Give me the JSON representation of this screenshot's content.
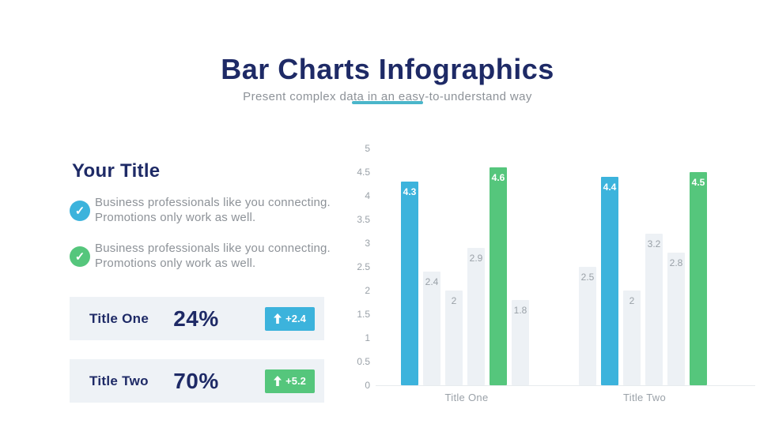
{
  "header": {
    "title": "Bar Charts Infographics",
    "subtitle": "Present complex data in an easy-to-understand way"
  },
  "left_panel": {
    "title": "Your Title",
    "bullets": [
      {
        "icon": "check-circle",
        "icon_color": "blue",
        "check_glyph": "✓",
        "lines": [
          "Business professionals like you connecting.",
          "Promotions only work as well."
        ]
      },
      {
        "icon": "check-circle",
        "icon_color": "green",
        "check_glyph": "✓",
        "lines": [
          "Business professionals like you connecting.",
          "Promotions only work as well."
        ]
      }
    ],
    "stats": [
      {
        "label": "Title One",
        "value": "24%",
        "delta": "+2.4",
        "badge_color": "blue",
        "badge_icon": "up-arrow"
      },
      {
        "label": "Title Two",
        "value": "70%",
        "delta": "+5.2",
        "badge_color": "green",
        "badge_icon": "up-arrow"
      }
    ]
  },
  "chart_data": {
    "type": "bar",
    "title": "",
    "xlabel": "",
    "ylabel": "",
    "ylim": [
      0,
      5
    ],
    "ytick_step": 0.5,
    "yticks": [
      "0",
      "0.5",
      "1",
      "1.5",
      "2",
      "2.5",
      "3",
      "3.5",
      "4",
      "4.5",
      "5"
    ],
    "grid": false,
    "legend": false,
    "categories": [
      "Title One",
      "Title Two"
    ],
    "groups": [
      {
        "label": "Title One",
        "bars": [
          {
            "value": 4.3,
            "color": "blue"
          },
          {
            "value": 2.4,
            "color": "gray"
          },
          {
            "value": 2,
            "color": "gray"
          },
          {
            "value": 2.9,
            "color": "gray"
          },
          {
            "value": 4.6,
            "color": "green"
          },
          {
            "value": 1.8,
            "color": "gray"
          }
        ]
      },
      {
        "label": "Title Two",
        "bars": [
          {
            "value": 2.5,
            "color": "gray"
          },
          {
            "value": 4.4,
            "color": "blue"
          },
          {
            "value": 2,
            "color": "gray"
          },
          {
            "value": 3.2,
            "color": "gray"
          },
          {
            "value": 2.8,
            "color": "gray"
          },
          {
            "value": 4.5,
            "color": "green"
          }
        ]
      }
    ]
  },
  "colors": {
    "navy": "#1e2a66",
    "text_gray": "#8d9298",
    "cyan": "#4ab6ca",
    "blue": "#3cb3dc",
    "green": "#55c67c",
    "bar_gray": "#edf1f5",
    "axis_gray": "#9aa1a8",
    "row_bg": "#eef2f6",
    "baseline": "#e7ebee"
  }
}
